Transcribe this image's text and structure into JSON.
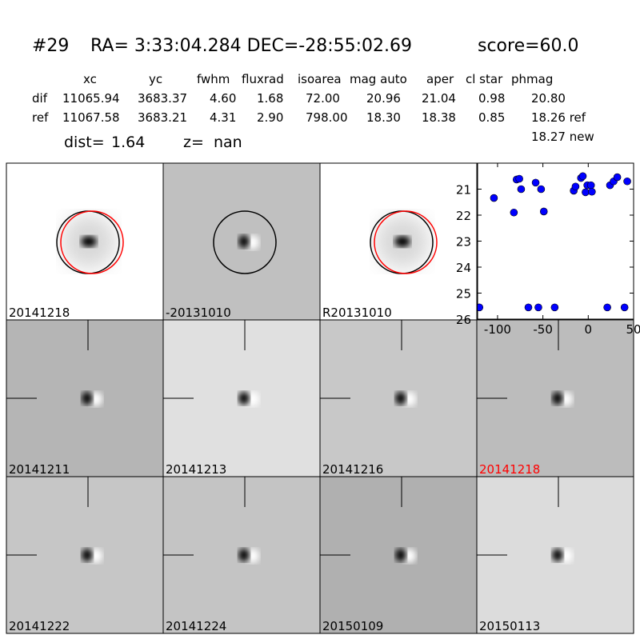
{
  "header": {
    "id": "#29",
    "coords": "RA= 3:33:04.284 DEC=-28:55:02.69",
    "score": "score=60.0"
  },
  "table": {
    "columns": [
      "xc",
      "yc",
      "fwhm",
      "fluxrad",
      "isoarea",
      "mag auto",
      "aper",
      "cl star",
      "phmag"
    ],
    "rows": [
      [
        "dif",
        "11065.94",
        "3683.37",
        "4.60",
        "1.68",
        "72.00",
        "20.96",
        "21.04",
        "0.98",
        "20.80"
      ],
      [
        "ref",
        "11067.58",
        "3683.21",
        "4.31",
        "2.90",
        "798.00",
        "18.30",
        "18.38",
        "0.85",
        "18.26 ref"
      ]
    ],
    "extra": "18.27 new"
  },
  "dist": {
    "dist_label": "dist=",
    "dist_value": "1.64",
    "z_label": "z=",
    "z_value": "nan"
  },
  "panels": [
    {
      "label": "20141218"
    },
    {
      "label": "-20131010"
    },
    {
      "label": "R20131010"
    },
    {
      "label": "20141211"
    },
    {
      "label": "20141213"
    },
    {
      "label": "20141216"
    },
    {
      "label": "20141218",
      "color": "red"
    },
    {
      "label": "20141222"
    },
    {
      "label": "20141224"
    },
    {
      "label": "20150109"
    },
    {
      "label": "20150113"
    }
  ],
  "chart_data": {
    "type": "scatter",
    "color": "#0000ff",
    "x": [
      -120,
      -104,
      -82,
      -79,
      -76,
      -74,
      -66,
      -58,
      -55,
      -52,
      -49,
      -37,
      -16,
      -14,
      -8,
      -6,
      -3,
      -1,
      3,
      4,
      21,
      24,
      28,
      32,
      40,
      43
    ],
    "values": [
      25.55,
      21.34,
      21.9,
      20.63,
      20.6,
      21.0,
      25.55,
      20.75,
      25.55,
      21.0,
      21.86,
      25.55,
      21.06,
      20.9,
      20.57,
      20.5,
      21.12,
      20.85,
      20.85,
      21.1,
      25.55,
      20.85,
      20.7,
      20.54,
      25.55,
      20.7
    ],
    "xlim": [
      -122,
      50
    ],
    "xticks": [
      -100,
      -50,
      0,
      50
    ],
    "ylim": [
      26,
      20
    ],
    "yticks": [
      21,
      22,
      23,
      24,
      25,
      26
    ]
  }
}
